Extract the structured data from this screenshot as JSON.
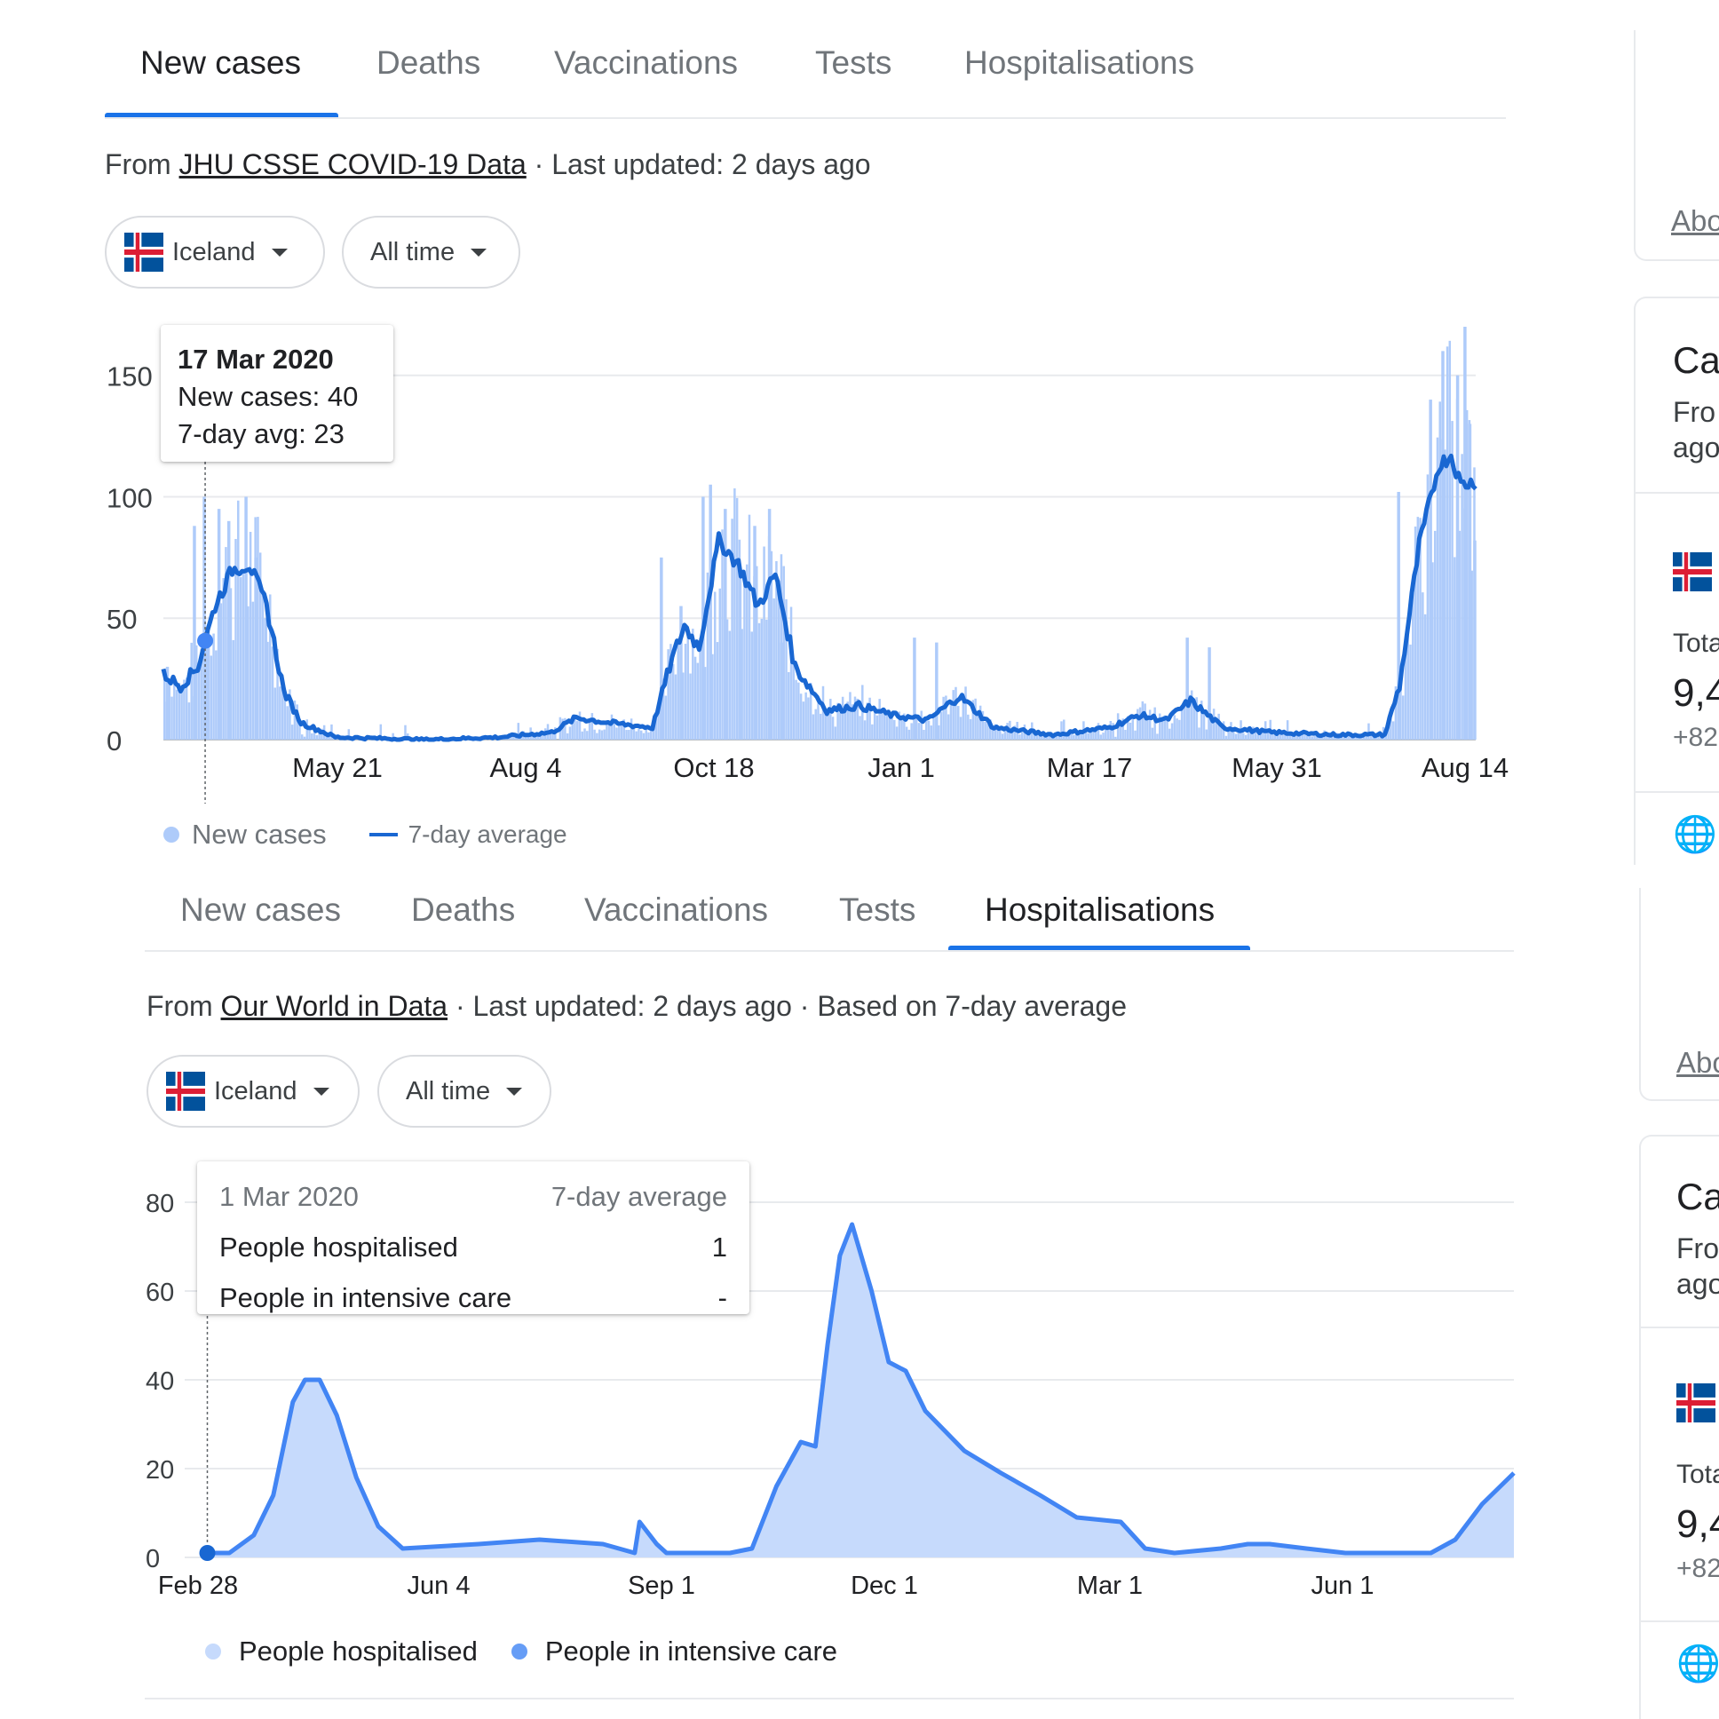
{
  "panel1": {
    "tabs": [
      "New cases",
      "Deaths",
      "Vaccinations",
      "Tests",
      "Hospitalisations"
    ],
    "active_tab": 0,
    "source_prefix": "From ",
    "source_link": "JHU CSSE COVID-19 Data",
    "source_suffix": " · Last updated: 2 days ago",
    "location_chip": "Iceland",
    "range_chip": "All time",
    "tooltip": {
      "date": "17 Mar 2020",
      "line1": "New cases: 40",
      "line2": "7-day avg: 23"
    },
    "legend": {
      "bars": "New cases",
      "line": "7-day average"
    },
    "colors": {
      "bar": "#aecbfa",
      "line": "#1967d2"
    }
  },
  "panel2": {
    "tabs": [
      "New cases",
      "Deaths",
      "Vaccinations",
      "Tests",
      "Hospitalisations"
    ],
    "active_tab": 4,
    "source_prefix": "From ",
    "source_link": "Our World in Data",
    "source_suffix": " · Last updated: 2 days ago · Based on 7-day average",
    "location_chip": "Iceland",
    "range_chip": "All time",
    "tooltip": {
      "date": "1 Mar 2020",
      "header_right": "7-day average",
      "rows": [
        {
          "label": "People hospitalised",
          "value": "1"
        },
        {
          "label": "People in intensive care",
          "value": "-"
        }
      ]
    },
    "legend": {
      "series1": "People hospitalised",
      "series2": "People in intensive care"
    },
    "colors": {
      "area": "#c6dafc",
      "line": "#4285f4",
      "icu": "#669df6"
    }
  },
  "right_rail": {
    "about_link": "Abo",
    "card_title": "Ca",
    "card_sub1": "Fro",
    "card_sub2": "ago",
    "total_label": "Tota",
    "total_value": "9,4",
    "delta": "+82"
  },
  "chart_data": [
    {
      "type": "bar",
      "overlay": "line",
      "title": "",
      "xlabel": "",
      "ylabel": "",
      "ylim": [
        0,
        170
      ],
      "y_ticks": [
        0,
        50,
        100,
        150
      ],
      "x_tick_labels": [
        "May 21",
        "Aug 4",
        "Oct 18",
        "Jan 1",
        "Mar 17",
        "May 31",
        "Aug 14"
      ],
      "x_range": [
        "2020-02-29",
        "2021-08-16"
      ],
      "series": [
        {
          "name": "7-day average",
          "points": [
            [
              "2020-02-29",
              27
            ],
            [
              "2020-03-07",
              22
            ],
            [
              "2020-03-14",
              30
            ],
            [
              "2020-03-21",
              55
            ],
            [
              "2020-03-28",
              70
            ],
            [
              "2020-04-04",
              72
            ],
            [
              "2020-04-11",
              55
            ],
            [
              "2020-04-18",
              20
            ],
            [
              "2020-04-25",
              7
            ],
            [
              "2020-05-09",
              1
            ],
            [
              "2020-06-15",
              0
            ],
            [
              "2020-07-15",
              1
            ],
            [
              "2020-08-05",
              3
            ],
            [
              "2020-08-15",
              9
            ],
            [
              "2020-08-28",
              7
            ],
            [
              "2020-09-15",
              5
            ],
            [
              "2020-09-22",
              30
            ],
            [
              "2020-09-28",
              47
            ],
            [
              "2020-10-04",
              38
            ],
            [
              "2020-10-12",
              82
            ],
            [
              "2020-10-20",
              72
            ],
            [
              "2020-10-28",
              55
            ],
            [
              "2020-11-04",
              68
            ],
            [
              "2020-11-12",
              30
            ],
            [
              "2020-11-25",
              12
            ],
            [
              "2020-12-08",
              14
            ],
            [
              "2020-12-22",
              10
            ],
            [
              "2021-01-05",
              8
            ],
            [
              "2021-01-18",
              18
            ],
            [
              "2021-02-01",
              5
            ],
            [
              "2021-02-25",
              2
            ],
            [
              "2021-03-20",
              5
            ],
            [
              "2021-04-01",
              10
            ],
            [
              "2021-04-12",
              8
            ],
            [
              "2021-04-22",
              16
            ],
            [
              "2021-05-05",
              5
            ],
            [
              "2021-05-25",
              3
            ],
            [
              "2021-06-20",
              2
            ],
            [
              "2021-07-10",
              2
            ],
            [
              "2021-07-16",
              22
            ],
            [
              "2021-07-24",
              80
            ],
            [
              "2021-08-01",
              113
            ],
            [
              "2021-08-06",
              117
            ],
            [
              "2021-08-10",
              105
            ],
            [
              "2021-08-15",
              106
            ]
          ]
        }
      ],
      "bars": {
        "name": "New cases",
        "points": [
          [
            "2020-03-01",
            30
          ],
          [
            "2020-03-12",
            88
          ],
          [
            "2020-03-16",
            100
          ],
          [
            "2020-03-17",
            40
          ],
          [
            "2020-03-22",
            95
          ],
          [
            "2020-03-26",
            90
          ],
          [
            "2020-04-02",
            100
          ],
          [
            "2020-04-06",
            75
          ],
          [
            "2020-04-10",
            50
          ],
          [
            "2020-09-18",
            75
          ],
          [
            "2020-09-26",
            55
          ],
          [
            "2020-10-05",
            100
          ],
          [
            "2020-10-08",
            105
          ],
          [
            "2020-10-14",
            95
          ],
          [
            "2020-10-20",
            70
          ],
          [
            "2020-10-26",
            88
          ],
          [
            "2020-11-01",
            95
          ],
          [
            "2020-11-06",
            40
          ],
          [
            "2020-12-30",
            42
          ],
          [
            "2021-01-08",
            40
          ],
          [
            "2021-04-20",
            42
          ],
          [
            "2021-04-29",
            38
          ],
          [
            "2021-07-15",
            102
          ],
          [
            "2021-07-28",
            140
          ],
          [
            "2021-08-02",
            160
          ],
          [
            "2021-08-08",
            150
          ],
          [
            "2021-08-11",
            170
          ],
          [
            "2021-08-13",
            130
          ],
          [
            "2021-08-15",
            82
          ]
        ]
      },
      "tooltip_date": "2020-03-17",
      "legend": "bottom-left"
    },
    {
      "type": "area",
      "title": "",
      "xlabel": "",
      "ylabel": "",
      "ylim": [
        0,
        80
      ],
      "y_ticks": [
        0,
        20,
        40,
        60,
        80
      ],
      "x_tick_labels": [
        "Feb 28",
        "Jun 4",
        "Sep 1",
        "Dec 1",
        "Mar 1",
        "Jun 1"
      ],
      "x_range": [
        "2020-02-28",
        "2021-08-18"
      ],
      "series": [
        {
          "name": "People hospitalised",
          "points": [
            [
              "2020-02-28",
              1
            ],
            [
              "2020-03-10",
              1
            ],
            [
              "2020-03-20",
              5
            ],
            [
              "2020-03-28",
              14
            ],
            [
              "2020-04-05",
              35
            ],
            [
              "2020-04-10",
              40
            ],
            [
              "2020-04-16",
              40
            ],
            [
              "2020-04-23",
              32
            ],
            [
              "2020-05-01",
              18
            ],
            [
              "2020-05-10",
              7
            ],
            [
              "2020-05-20",
              2
            ],
            [
              "2020-06-20",
              3
            ],
            [
              "2020-07-15",
              4
            ],
            [
              "2020-08-10",
              3
            ],
            [
              "2020-08-23",
              1
            ],
            [
              "2020-08-25",
              8
            ],
            [
              "2020-09-01",
              3
            ],
            [
              "2020-09-05",
              1
            ],
            [
              "2020-10-01",
              1
            ],
            [
              "2020-10-10",
              2
            ],
            [
              "2020-10-20",
              16
            ],
            [
              "2020-10-30",
              26
            ],
            [
              "2020-11-05",
              25
            ],
            [
              "2020-11-10",
              48
            ],
            [
              "2020-11-15",
              68
            ],
            [
              "2020-11-20",
              75
            ],
            [
              "2020-11-28",
              60
            ],
            [
              "2020-12-05",
              44
            ],
            [
              "2020-12-12",
              42
            ],
            [
              "2020-12-20",
              33
            ],
            [
              "2021-01-05",
              24
            ],
            [
              "2021-01-20",
              19
            ],
            [
              "2021-02-05",
              14
            ],
            [
              "2021-02-20",
              9
            ],
            [
              "2021-03-10",
              8
            ],
            [
              "2021-03-20",
              2
            ],
            [
              "2021-04-01",
              1
            ],
            [
              "2021-04-20",
              2
            ],
            [
              "2021-05-01",
              3
            ],
            [
              "2021-05-10",
              3
            ],
            [
              "2021-05-25",
              2
            ],
            [
              "2021-06-10",
              1
            ],
            [
              "2021-07-15",
              1
            ],
            [
              "2021-07-25",
              4
            ],
            [
              "2021-08-05",
              12
            ],
            [
              "2021-08-18",
              19
            ]
          ]
        },
        {
          "name": "People in intensive care",
          "points": []
        }
      ],
      "tooltip_date": "2020-03-01",
      "legend": "bottom-left"
    }
  ]
}
